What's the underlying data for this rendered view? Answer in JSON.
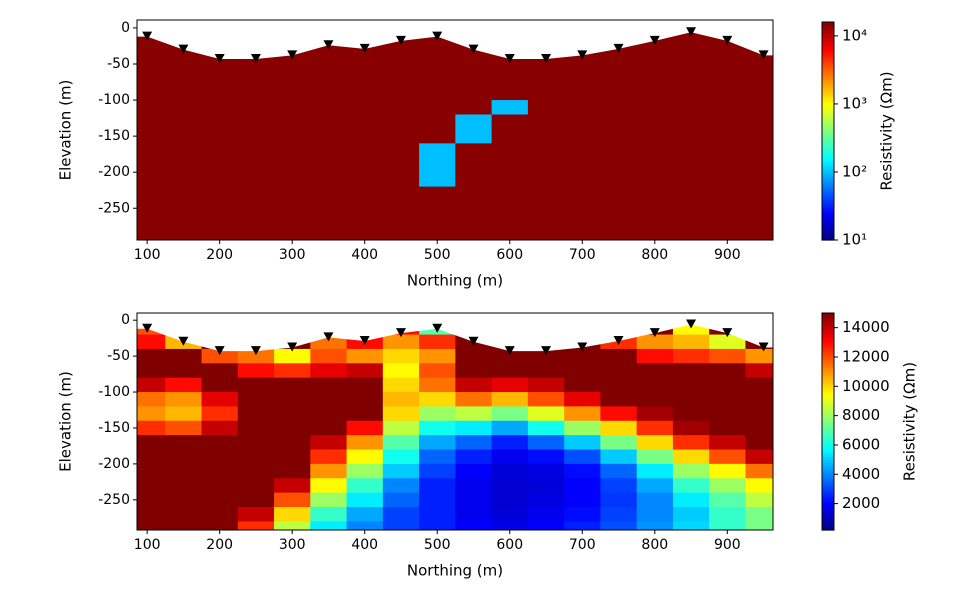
{
  "chart_data": [
    {
      "type": "heatmap",
      "log": true,
      "xlabel": "Northing (m)",
      "ylabel": "Elevation (m)",
      "colorbar_label": "Resistivity (Ωm)",
      "xlim": [
        86,
        963
      ],
      "ylim": [
        -294,
        11
      ],
      "xticks": [
        100,
        200,
        300,
        400,
        500,
        600,
        700,
        800,
        900
      ],
      "yticks": [
        0,
        -50,
        -100,
        -150,
        -200,
        -250
      ],
      "clim": [
        10,
        16000
      ],
      "cticks": [
        {
          "value": 10,
          "label": "10¹"
        },
        {
          "value": 100,
          "label": "10²"
        },
        {
          "value": 1000,
          "label": "10³"
        },
        {
          "value": 10000,
          "label": "10⁴"
        }
      ],
      "x": [
        100,
        150,
        200,
        250,
        300,
        350,
        400,
        450,
        500,
        550,
        600,
        650,
        700,
        750,
        800,
        850,
        900,
        950
      ],
      "y": [
        -10,
        -30,
        -50,
        -70,
        -90,
        -110,
        -130,
        -150,
        -170,
        -190,
        -210,
        -230,
        -250,
        -270,
        -290
      ],
      "values": [
        [
          15000,
          15000,
          15000,
          15000,
          15000,
          15000,
          15000,
          15000,
          15000,
          15000,
          15000,
          15000,
          15000,
          15000,
          15000,
          15000,
          15000,
          15000
        ],
        [
          15000,
          15000,
          15000,
          15000,
          15000,
          15000,
          15000,
          15000,
          15000,
          15000,
          15000,
          15000,
          15000,
          15000,
          15000,
          15000,
          15000,
          15000
        ],
        [
          15000,
          15000,
          15000,
          15000,
          15000,
          15000,
          15000,
          15000,
          15000,
          15000,
          15000,
          15000,
          15000,
          15000,
          15000,
          15000,
          15000,
          15000
        ],
        [
          15000,
          15000,
          15000,
          15000,
          15000,
          15000,
          15000,
          15000,
          15000,
          15000,
          15000,
          15000,
          15000,
          15000,
          15000,
          15000,
          15000,
          15000
        ],
        [
          15000,
          15000,
          15000,
          15000,
          15000,
          15000,
          15000,
          15000,
          15000,
          15000,
          15000,
          15000,
          15000,
          15000,
          15000,
          15000,
          15000,
          15000
        ],
        [
          15000,
          15000,
          15000,
          15000,
          15000,
          15000,
          15000,
          15000,
          15000,
          15000,
          100,
          15000,
          15000,
          15000,
          15000,
          15000,
          15000,
          15000
        ],
        [
          15000,
          15000,
          15000,
          15000,
          15000,
          15000,
          15000,
          15000,
          15000,
          100,
          15000,
          15000,
          15000,
          15000,
          15000,
          15000,
          15000,
          15000
        ],
        [
          15000,
          15000,
          15000,
          15000,
          15000,
          15000,
          15000,
          15000,
          15000,
          100,
          15000,
          15000,
          15000,
          15000,
          15000,
          15000,
          15000,
          15000
        ],
        [
          15000,
          15000,
          15000,
          15000,
          15000,
          15000,
          15000,
          15000,
          100,
          15000,
          15000,
          15000,
          15000,
          15000,
          15000,
          15000,
          15000,
          15000
        ],
        [
          15000,
          15000,
          15000,
          15000,
          15000,
          15000,
          15000,
          15000,
          100,
          15000,
          15000,
          15000,
          15000,
          15000,
          15000,
          15000,
          15000,
          15000
        ],
        [
          15000,
          15000,
          15000,
          15000,
          15000,
          15000,
          15000,
          15000,
          100,
          15000,
          15000,
          15000,
          15000,
          15000,
          15000,
          15000,
          15000,
          15000
        ],
        [
          15000,
          15000,
          15000,
          15000,
          15000,
          15000,
          15000,
          15000,
          15000,
          15000,
          15000,
          15000,
          15000,
          15000,
          15000,
          15000,
          15000,
          15000
        ],
        [
          15000,
          15000,
          15000,
          15000,
          15000,
          15000,
          15000,
          15000,
          15000,
          15000,
          15000,
          15000,
          15000,
          15000,
          15000,
          15000,
          15000,
          15000
        ],
        [
          15000,
          15000,
          15000,
          15000,
          15000,
          15000,
          15000,
          15000,
          15000,
          15000,
          15000,
          15000,
          15000,
          15000,
          15000,
          15000,
          15000,
          15000
        ],
        [
          15000,
          15000,
          15000,
          15000,
          15000,
          15000,
          15000,
          15000,
          15000,
          15000,
          15000,
          15000,
          15000,
          15000,
          15000,
          15000,
          15000,
          15000
        ]
      ],
      "stations": {
        "x": [
          100,
          150,
          200,
          250,
          300,
          350,
          400,
          450,
          500,
          550,
          600,
          650,
          700,
          750,
          800,
          850,
          900,
          950
        ],
        "elevation": [
          -12,
          -30,
          -43,
          -43,
          -38,
          -24,
          -29,
          -18,
          -12,
          -30,
          -43,
          -43,
          -38,
          -29,
          -18,
          -6,
          -18,
          -38
        ]
      }
    },
    {
      "type": "heatmap",
      "log": false,
      "xlabel": "Northing (m)",
      "ylabel": "Elevation (m)",
      "colorbar_label": "Resistivity (Ωm)",
      "xlim": [
        86,
        963
      ],
      "ylim": [
        -292,
        10
      ],
      "xticks": [
        100,
        200,
        300,
        400,
        500,
        600,
        700,
        800,
        900
      ],
      "yticks": [
        0,
        -50,
        -100,
        -150,
        -200,
        -250
      ],
      "clim": [
        200,
        15000
      ],
      "cticks": [
        2000,
        4000,
        6000,
        8000,
        10000,
        12000,
        14000
      ],
      "x": [
        100,
        150,
        200,
        250,
        300,
        350,
        400,
        450,
        500,
        550,
        600,
        650,
        700,
        750,
        800,
        850,
        900,
        950
      ],
      "y": [
        -10,
        -30,
        -50,
        -70,
        -90,
        -110,
        -130,
        -150,
        -170,
        -190,
        -210,
        -230,
        -250,
        -270,
        -290
      ],
      "values": [
        [
          12000,
          11000,
          15000,
          15000,
          15000,
          15000,
          15000,
          13000,
          7000,
          15000,
          15000,
          15000,
          15000,
          15000,
          15000,
          9500,
          15000,
          15000
        ],
        [
          13000,
          10500,
          15000,
          15000,
          15000,
          11500,
          13000,
          11000,
          12500,
          15000,
          15000,
          15000,
          15000,
          12500,
          11000,
          10500,
          9000,
          15000
        ],
        [
          15000,
          15000,
          12000,
          11500,
          9500,
          12000,
          11000,
          10000,
          11000,
          15000,
          15000,
          15000,
          15000,
          15000,
          13000,
          12500,
          12000,
          11000
        ],
        [
          15000,
          15000,
          15000,
          13000,
          12500,
          13500,
          14000,
          9500,
          12000,
          15000,
          15000,
          15000,
          15000,
          15000,
          15000,
          15000,
          15000,
          14000
        ],
        [
          14000,
          13000,
          15000,
          15000,
          15000,
          15000,
          15000,
          10000,
          11500,
          14000,
          13500,
          14000,
          15000,
          15000,
          15000,
          15000,
          15000,
          15000
        ],
        [
          11500,
          11000,
          13500,
          15000,
          15000,
          15000,
          15000,
          10500,
          10000,
          11500,
          10500,
          12000,
          13500,
          15000,
          15000,
          15000,
          15000,
          15000
        ],
        [
          11000,
          10500,
          12500,
          15000,
          15000,
          15000,
          15000,
          10000,
          8000,
          8500,
          7500,
          9000,
          11000,
          13000,
          14500,
          15000,
          15000,
          15000
        ],
        [
          12500,
          12000,
          14000,
          15000,
          15000,
          15000,
          13000,
          8500,
          6000,
          5500,
          4500,
          6000,
          8000,
          10000,
          12500,
          14500,
          15000,
          15000
        ],
        [
          15000,
          15000,
          15000,
          15000,
          15000,
          14000,
          11000,
          7000,
          4500,
          3500,
          2500,
          3500,
          5000,
          7500,
          10000,
          12500,
          14000,
          15000
        ],
        [
          15000,
          15000,
          15000,
          15000,
          15000,
          12500,
          9500,
          6000,
          3500,
          2500,
          1800,
          2200,
          3200,
          5000,
          7500,
          10000,
          12000,
          14000
        ],
        [
          15000,
          15000,
          15000,
          15000,
          15000,
          11000,
          8000,
          5000,
          3000,
          2000,
          1500,
          1600,
          2200,
          3500,
          5500,
          8000,
          9500,
          11500
        ],
        [
          15000,
          15000,
          15000,
          15000,
          14000,
          9500,
          6500,
          4000,
          2500,
          1800,
          1400,
          1500,
          2000,
          3000,
          4500,
          6500,
          8000,
          9500
        ],
        [
          15000,
          15000,
          15000,
          15000,
          12000,
          8000,
          5500,
          3500,
          2500,
          1800,
          1400,
          1600,
          2000,
          2800,
          4000,
          5500,
          7000,
          8500
        ],
        [
          15000,
          15000,
          15000,
          14000,
          10000,
          6500,
          4500,
          3000,
          2500,
          1800,
          1500,
          1800,
          2200,
          3000,
          4000,
          5000,
          6500,
          7500
        ],
        [
          15000,
          15000,
          15000,
          12500,
          8500,
          5500,
          4000,
          3000,
          2500,
          2000,
          1700,
          2000,
          2500,
          3200,
          4200,
          5200,
          6500,
          7500
        ]
      ],
      "stations": {
        "x": [
          100,
          150,
          200,
          250,
          300,
          350,
          400,
          450,
          500,
          550,
          600,
          650,
          700,
          750,
          800,
          850,
          900,
          950
        ],
        "elevation": [
          -12,
          -30,
          -43,
          -43,
          -38,
          -24,
          -29,
          -18,
          -12,
          -30,
          -43,
          -43,
          -38,
          -29,
          -18,
          -6,
          -18,
          -38
        ]
      }
    }
  ]
}
